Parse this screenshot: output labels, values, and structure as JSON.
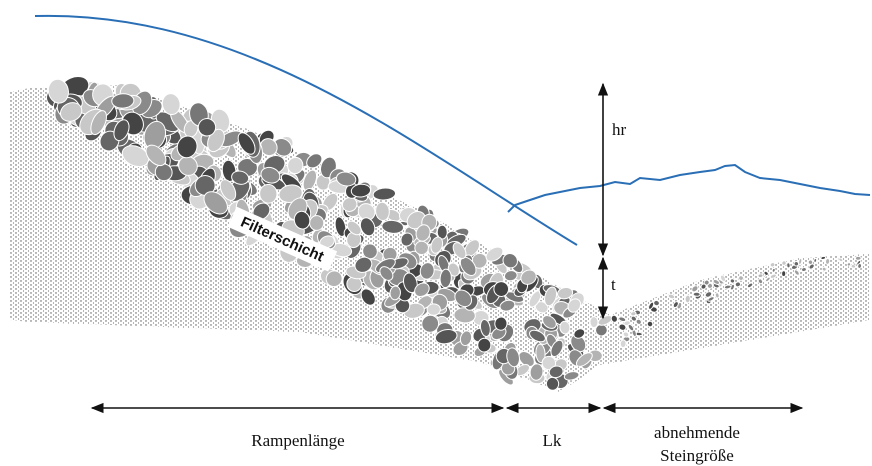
{
  "labels": {
    "hr": "hr",
    "t": "t",
    "filter": "Filterschicht",
    "ramp_length": "Rampenlänge",
    "lk": "Lk",
    "decreasing_stone_size": [
      "abnehmende",
      "Steingröße"
    ]
  }
}
